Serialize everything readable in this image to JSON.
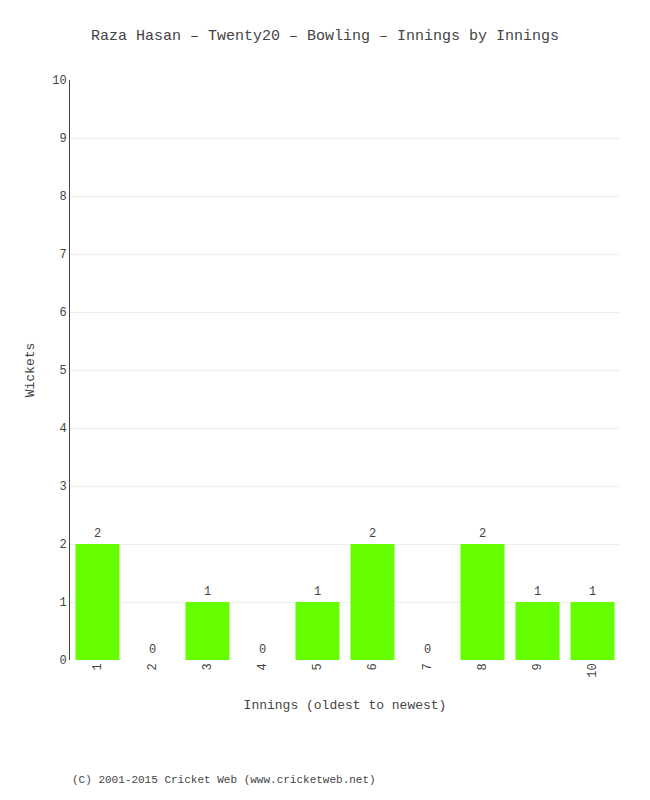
{
  "chart_data": {
    "type": "bar",
    "title": "Raza Hasan – Twenty20 – Bowling – Innings by Innings",
    "xlabel": "Innings (oldest to newest)",
    "ylabel": "Wickets",
    "categories": [
      "1",
      "2",
      "3",
      "4",
      "5",
      "6",
      "7",
      "8",
      "9",
      "10"
    ],
    "values": [
      2,
      0,
      1,
      0,
      1,
      2,
      0,
      2,
      1,
      1
    ],
    "color": "#66ff00",
    "ylim": [
      0,
      10
    ],
    "yticks": [
      0,
      1,
      2,
      3,
      4,
      5,
      6,
      7,
      8,
      9,
      10
    ],
    "grid": true,
    "data_labels": true,
    "annotations": [
      "(C) 2001-2015 Cricket Web (www.cricketweb.net)"
    ]
  }
}
